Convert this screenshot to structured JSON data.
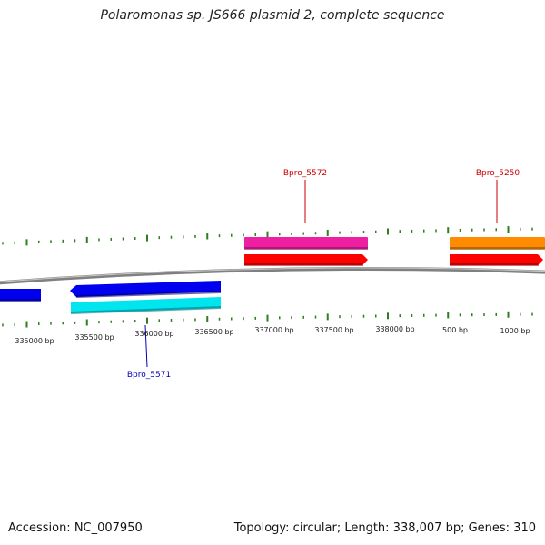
{
  "title": "Polaromonas sp. JS666 plasmid 2, complete sequence",
  "footer": {
    "accession": "Accession: NC_007950",
    "summary": "Topology: circular; Length: 338,007 bp; Genes: 310"
  },
  "scale_labels": [
    "335000 bp",
    "335500 bp",
    "336000 bp",
    "336500 bp",
    "337000 bp",
    "337500 bp",
    "338000 bp",
    "500 bp",
    "1000 bp"
  ],
  "gene_labels": [
    {
      "name": "Bpro_5572",
      "color": "#cc0000"
    },
    {
      "name": "Bpro_5250",
      "color": "#cc0000"
    },
    {
      "name": "Bpro_5571",
      "color": "#0000bb"
    }
  ],
  "colors": {
    "backbone": "#808080",
    "tick": "#2e7d1e",
    "forward_cds": "#ff0000",
    "reverse_cds": "#0000ee",
    "forward_feature_1": "#ee1fa0",
    "forward_feature_2": "#ff8c00",
    "reverse_feature": "#00e5ee"
  }
}
